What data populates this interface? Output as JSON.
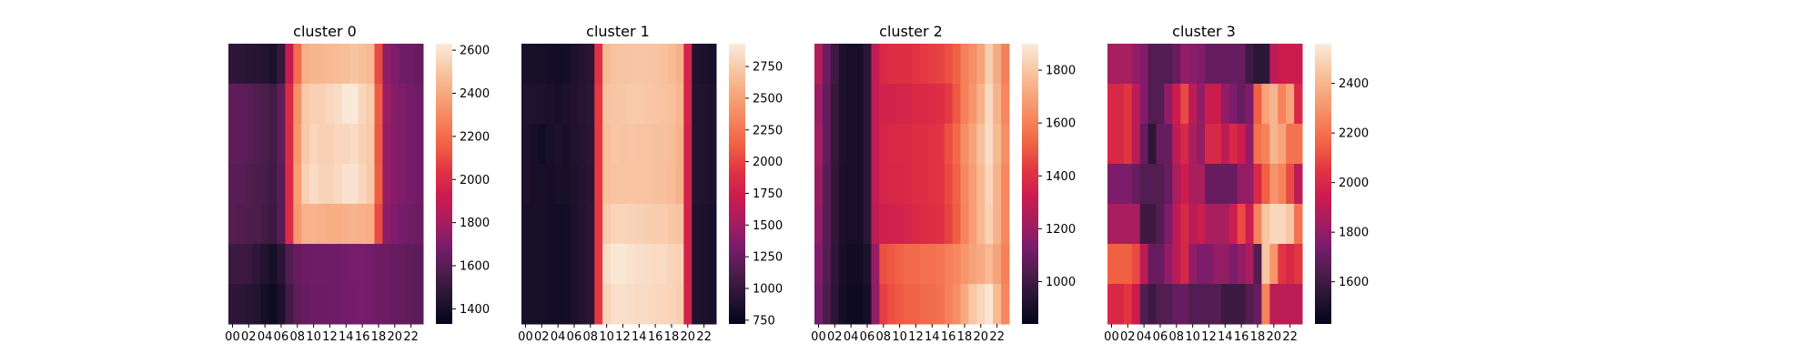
{
  "chart_data": [
    {
      "type": "heatmap",
      "title": "cluster 0",
      "x_tick_labels": [
        "00",
        "02",
        "04",
        "06",
        "08",
        "10",
        "12",
        "14",
        "16",
        "18",
        "20",
        "22"
      ],
      "rows": 7,
      "columns": 24,
      "values": [
        [
          1480,
          1470,
          1460,
          1450,
          1440,
          1420,
          1500,
          1900,
          2200,
          2430,
          2450,
          2450,
          2460,
          2470,
          2480,
          2500,
          2480,
          2460,
          2100,
          1750,
          1700,
          1660,
          1650,
          1640
        ],
        [
          1620,
          1610,
          1600,
          1580,
          1560,
          1540,
          1620,
          2000,
          2320,
          2520,
          2540,
          2540,
          2560,
          2580,
          2620,
          2620,
          2560,
          2530,
          2150,
          1780,
          1720,
          1700,
          1680,
          1660
        ],
        [
          1620,
          1610,
          1600,
          1580,
          1560,
          1540,
          1620,
          2000,
          2340,
          2520,
          2560,
          2540,
          2540,
          2560,
          2560,
          2580,
          2540,
          2520,
          2140,
          1760,
          1720,
          1700,
          1680,
          1660
        ],
        [
          1600,
          1600,
          1580,
          1560,
          1550,
          1530,
          1600,
          2000,
          2360,
          2540,
          2580,
          2550,
          2550,
          2570,
          2600,
          2600,
          2560,
          2520,
          2150,
          1760,
          1720,
          1700,
          1680,
          1660
        ],
        [
          1590,
          1580,
          1570,
          1560,
          1540,
          1520,
          1600,
          2000,
          2350,
          2440,
          2440,
          2430,
          2420,
          2420,
          2430,
          2440,
          2430,
          2420,
          2100,
          1740,
          1700,
          1680,
          1660,
          1650
        ],
        [
          1520,
          1520,
          1510,
          1480,
          1440,
          1400,
          1460,
          1580,
          1640,
          1650,
          1660,
          1660,
          1660,
          1660,
          1670,
          1680,
          1680,
          1670,
          1660,
          1650,
          1640,
          1630,
          1620,
          1610
        ],
        [
          1480,
          1470,
          1460,
          1440,
          1400,
          1370,
          1420,
          1540,
          1620,
          1640,
          1650,
          1650,
          1660,
          1660,
          1670,
          1670,
          1680,
          1670,
          1660,
          1650,
          1640,
          1630,
          1620,
          1610
        ]
      ],
      "colorbar": {
        "min": 1330,
        "max": 2630,
        "ticks": [
          1400,
          1600,
          1800,
          2000,
          2200,
          2400,
          2600
        ]
      },
      "grid": false
    },
    {
      "type": "heatmap",
      "title": "cluster 1",
      "x_tick_labels": [
        "00",
        "02",
        "04",
        "06",
        "08",
        "10",
        "12",
        "14",
        "16",
        "18",
        "20",
        "22"
      ],
      "rows": 7,
      "columns": 24,
      "values": [
        [
          860,
          850,
          840,
          830,
          820,
          830,
          880,
          920,
          950,
          1900,
          2650,
          2700,
          2700,
          2710,
          2720,
          2710,
          2700,
          2680,
          2650,
          2600,
          1800,
          900,
          870,
          860
        ],
        [
          900,
          890,
          880,
          870,
          860,
          870,
          900,
          930,
          960,
          1950,
          2700,
          2720,
          2730,
          2740,
          2740,
          2730,
          2720,
          2700,
          2680,
          2620,
          1800,
          920,
          900,
          880
        ],
        [
          880,
          850,
          820,
          850,
          870,
          860,
          900,
          920,
          950,
          1950,
          2680,
          2720,
          2700,
          2720,
          2700,
          2700,
          2690,
          2680,
          2670,
          2600,
          1780,
          920,
          900,
          880
        ],
        [
          880,
          860,
          840,
          830,
          860,
          840,
          880,
          920,
          940,
          1950,
          2680,
          2700,
          2700,
          2710,
          2700,
          2700,
          2690,
          2680,
          2660,
          2600,
          1780,
          920,
          900,
          880
        ],
        [
          860,
          850,
          840,
          830,
          820,
          830,
          870,
          910,
          950,
          1950,
          2750,
          2800,
          2800,
          2790,
          2780,
          2770,
          2760,
          2750,
          2730,
          2700,
          1780,
          900,
          880,
          860
        ],
        [
          860,
          850,
          840,
          830,
          820,
          830,
          870,
          910,
          950,
          1950,
          2850,
          2900,
          2900,
          2880,
          2860,
          2850,
          2840,
          2830,
          2800,
          2780,
          1780,
          900,
          880,
          860
        ],
        [
          860,
          850,
          840,
          830,
          820,
          830,
          870,
          910,
          950,
          1950,
          2800,
          2860,
          2860,
          2850,
          2840,
          2830,
          2820,
          2810,
          2800,
          2770,
          1780,
          900,
          880,
          860
        ]
      ],
      "colorbar": {
        "min": 720,
        "max": 2930,
        "ticks": [
          750,
          1000,
          1250,
          1500,
          1750,
          2000,
          2250,
          2500,
          2750
        ]
      },
      "grid": false
    },
    {
      "type": "heatmap",
      "title": "cluster 2",
      "x_tick_labels": [
        "00",
        "02",
        "04",
        "06",
        "08",
        "10",
        "12",
        "14",
        "16",
        "18",
        "20",
        "22"
      ],
      "rows": 7,
      "columns": 24,
      "values": [
        [
          1250,
          1100,
          1000,
          920,
          900,
          900,
          950,
          1300,
          1380,
          1400,
          1400,
          1400,
          1420,
          1430,
          1440,
          1450,
          1480,
          1520,
          1600,
          1640,
          1700,
          1820,
          1720,
          1600
        ],
        [
          1200,
          1080,
          980,
          920,
          900,
          900,
          950,
          1300,
          1350,
          1350,
          1360,
          1360,
          1380,
          1380,
          1390,
          1400,
          1430,
          1500,
          1600,
          1660,
          1740,
          1850,
          1740,
          1620
        ],
        [
          1220,
          1080,
          980,
          920,
          900,
          900,
          950,
          1300,
          1360,
          1380,
          1380,
          1380,
          1400,
          1400,
          1410,
          1420,
          1480,
          1540,
          1640,
          1700,
          1780,
          1860,
          1760,
          1640
        ],
        [
          1200,
          1060,
          970,
          910,
          900,
          900,
          950,
          1300,
          1360,
          1370,
          1370,
          1380,
          1400,
          1400,
          1410,
          1420,
          1460,
          1520,
          1620,
          1680,
          1760,
          1840,
          1740,
          1620
        ],
        [
          1180,
          1060,
          970,
          910,
          900,
          900,
          950,
          1290,
          1340,
          1340,
          1350,
          1360,
          1380,
          1390,
          1400,
          1410,
          1450,
          1510,
          1610,
          1680,
          1760,
          1830,
          1740,
          1620
        ],
        [
          1150,
          1050,
          960,
          900,
          880,
          880,
          920,
          1200,
          1480,
          1500,
          1520,
          1540,
          1540,
          1560,
          1560,
          1570,
          1600,
          1620,
          1660,
          1700,
          1720,
          1760,
          1700,
          1600
        ],
        [
          1120,
          1030,
          950,
          890,
          870,
          870,
          900,
          1180,
          1440,
          1480,
          1500,
          1520,
          1520,
          1540,
          1550,
          1560,
          1600,
          1640,
          1720,
          1800,
          1840,
          1880,
          1760,
          1620
        ]
      ],
      "colorbar": {
        "min": 840,
        "max": 1900,
        "ticks": [
          1000,
          1200,
          1400,
          1600,
          1800
        ]
      },
      "grid": false
    },
    {
      "type": "heatmap",
      "title": "cluster 3",
      "x_tick_labels": [
        "00",
        "02",
        "04",
        "06",
        "08",
        "10",
        "12",
        "14",
        "16",
        "18",
        "20",
        "22"
      ],
      "rows": 7,
      "columns": 24,
      "values": [
        [
          1850,
          1850,
          1850,
          1800,
          1760,
          1650,
          1650,
          1650,
          1700,
          1800,
          1780,
          1760,
          1700,
          1700,
          1700,
          1700,
          1700,
          1600,
          1550,
          1560,
          1900,
          1950,
          1950,
          1950
        ],
        [
          2000,
          2000,
          2050,
          1900,
          1760,
          1650,
          1650,
          1800,
          1950,
          2100,
          1900,
          1800,
          1950,
          1950,
          1800,
          1750,
          1700,
          1750,
          2150,
          2350,
          2400,
          2250,
          2350,
          2000
        ],
        [
          2000,
          2000,
          2050,
          1900,
          1700,
          1550,
          1700,
          1700,
          1900,
          2000,
          1850,
          1800,
          2000,
          2000,
          1900,
          2000,
          1950,
          1800,
          2200,
          2250,
          2400,
          2350,
          2200,
          2200
        ],
        [
          1750,
          1750,
          1750,
          1700,
          1650,
          1650,
          1650,
          1700,
          1850,
          1950,
          1850,
          1850,
          1700,
          1700,
          1700,
          1700,
          1800,
          1800,
          2000,
          2150,
          2300,
          2250,
          2100,
          1900
        ],
        [
          1850,
          1850,
          1850,
          1850,
          1600,
          1600,
          1650,
          1750,
          1900,
          2000,
          1900,
          1950,
          1850,
          1850,
          1850,
          1950,
          2100,
          1950,
          2250,
          2450,
          2500,
          2500,
          2450,
          2200
        ],
        [
          2150,
          2150,
          2150,
          2100,
          1900,
          1700,
          1700,
          1800,
          1900,
          2000,
          1800,
          1750,
          1750,
          1800,
          1800,
          1750,
          1800,
          1850,
          1650,
          2450,
          2300,
          2050,
          2000,
          2050
        ],
        [
          2000,
          2000,
          2050,
          1950,
          1650,
          1600,
          1650,
          1650,
          1700,
          1700,
          1650,
          1650,
          1650,
          1650,
          1600,
          1600,
          1600,
          1650,
          1700,
          2250,
          1900,
          1900,
          1900,
          1900
        ]
      ],
      "colorbar": {
        "min": 1430,
        "max": 2560,
        "ticks": [
          1600,
          1800,
          2000,
          2200,
          2400
        ]
      },
      "grid": false
    }
  ],
  "colormap": [
    "#03051a",
    "#241432",
    "#4c1d4b",
    "#781c6d",
    "#a51e5f",
    "#cb1b4f",
    "#e13342",
    "#f06043",
    "#f6845c",
    "#f7a67c",
    "#f8c8a6",
    "#faebdd"
  ]
}
